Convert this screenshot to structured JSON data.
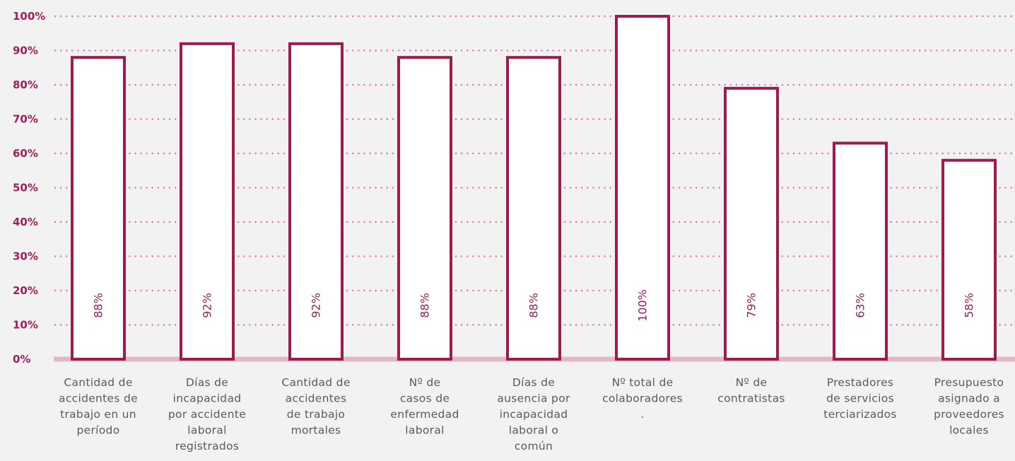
{
  "chart_data": {
    "type": "bar",
    "title": "",
    "xlabel": "",
    "ylabel": "",
    "ylim": [
      0,
      100
    ],
    "yticks": [
      "0%",
      "10%",
      "20%",
      "30%",
      "40%",
      "50%",
      "60%",
      "70%",
      "80%",
      "90%",
      "100%"
    ],
    "grid": true,
    "categories": [
      [
        "Cantidad de",
        "accidentes de",
        "trabajo en un",
        "período"
      ],
      [
        "Días de",
        "incapacidad",
        "por accidente",
        "laboral",
        "registrados"
      ],
      [
        "Cantidad de",
        "accidentes",
        "de trabajo",
        "mortales"
      ],
      [
        "Nº de",
        "casos de",
        "enfermedad",
        "laboral"
      ],
      [
        "Días de",
        "ausencia por",
        "incapacidad",
        "laboral o",
        "común"
      ],
      [
        "Nº total de",
        "colaboradores",
        "."
      ],
      [
        "Nº de",
        "contratistas"
      ],
      [
        "Prestadores",
        "de servicios",
        "terciarizados"
      ],
      [
        "Presupuesto",
        "asignado a",
        "proveedores",
        "locales"
      ]
    ],
    "values": [
      88,
      92,
      92,
      88,
      88,
      100,
      79,
      63,
      58
    ],
    "data_labels": [
      "88%",
      "92%",
      "92%",
      "88%",
      "88%",
      "100%",
      "79%",
      "63%",
      "58%"
    ],
    "colors": {
      "bar_border": "#9e1a50",
      "bar_fill": "#ffffff",
      "tick_text": "#a01e5a",
      "grid": "#d97a9a",
      "label_text": "#5a5a5a",
      "background": "#f3f2f2"
    }
  }
}
